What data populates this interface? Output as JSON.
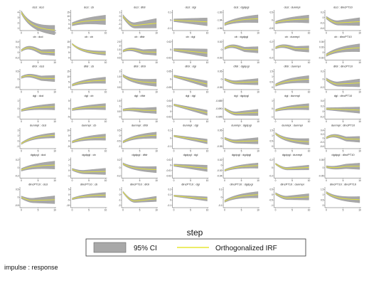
{
  "chart_data": {
    "type": "line",
    "x_label": "step",
    "footnote": "impulse : response",
    "legend": {
      "band_label": "95% CI",
      "line_label": "Orthogonalized IRF",
      "band_color": "#a8a8a8",
      "line_color": "#e6e633"
    },
    "x_ticks": [
      0,
      5,
      10
    ],
    "x_range": [
      0,
      10
    ],
    "variables": [
      "dcd",
      "cb",
      "dfdr",
      "dgl",
      "dgdpgl",
      "dunmpl",
      "dlncPT10"
    ],
    "panels": [
      [
        {
          "title": "dcd : dcd",
          "yticks": [
            "4",
            "3",
            "2",
            "1"
          ],
          "shape": "decay",
          "a": 4,
          "b": 0.5,
          "w": 0.9
        },
        {
          "title": "dcd : cb",
          "yticks": [
            "15",
            "10",
            "5",
            "0",
            "-5"
          ],
          "shape": "rise",
          "a": 0,
          "b": 6,
          "w": 6
        },
        {
          "title": "dcd : dfdr",
          "yticks": [
            "1",
            "0",
            "-1",
            "-2",
            "-3"
          ],
          "shape": "dipup",
          "a": 0,
          "b": -2.3,
          "w": 1.2
        },
        {
          "title": "dcd : dgl",
          "yticks": [
            "0.1",
            "0",
            "-0.1"
          ],
          "shape": "flatdown",
          "a": 0.0,
          "b": -0.02,
          "w": 0.05
        },
        {
          "title": "dcd : dgdpgl",
          "yticks": [
            "-1.92",
            "-1.94",
            "-1.96"
          ],
          "shape": "rise",
          "a": -1.95,
          "b": -1.935,
          "w": 0.01
        },
        {
          "title": "dcd : dunmpl",
          "yticks": [
            "0.5",
            "0",
            "-0.5"
          ],
          "shape": "rise",
          "a": -0.15,
          "b": 0.1,
          "w": 0.25
        },
        {
          "title": "dcd : dlncPT10",
          "yticks": [
            "0.2",
            "0",
            "-0.2",
            "-0.4"
          ],
          "shape": "dipup",
          "a": 0,
          "b": -0.2,
          "w": 0.15
        }
      ],
      [
        {
          "title": "cb : dcd",
          "yticks": [
            "0.4",
            "0.2",
            "0",
            "-0.2"
          ],
          "shape": "humpdown",
          "a": 0.2,
          "b": 0.0,
          "w": 0.12
        },
        {
          "title": "cb : cb",
          "yticks": [
            "15",
            "10",
            "5",
            "0"
          ],
          "shape": "decay",
          "a": 13,
          "b": 4,
          "w": 2
        },
        {
          "title": "cb : dfdr",
          "yticks": [
            "2.5",
            "2",
            "1.5",
            "1",
            "0.5"
          ],
          "shape": "humpdown",
          "a": 1.6,
          "b": 1.2,
          "w": 0.4
        },
        {
          "title": "cb : dgl",
          "yticks": [
            "0.02",
            "0",
            "-0.02"
          ],
          "shape": "flatdown",
          "a": 0.0,
          "b": -0.008,
          "w": 0.01
        },
        {
          "title": "cb : dgdpgl",
          "yticks": [
            "0.02",
            "0",
            "-0.02"
          ],
          "shape": "humpdown",
          "a": 0.01,
          "b": 0.0,
          "w": 0.008
        },
        {
          "title": "cb : dunmpl",
          "yticks": [
            "0.2",
            "0",
            "-0.2"
          ],
          "shape": "humpdown",
          "a": 0.1,
          "b": 0.02,
          "w": 0.08
        },
        {
          "title": "cb : dlncPT10",
          "yticks": [
            "0.04",
            "0.02",
            "0",
            "-0.02"
          ],
          "shape": "rise",
          "a": -0.01,
          "b": 0.02,
          "w": 0.015
        }
      ],
      [
        {
          "title": "dfdr : dcd",
          "yticks": [
            "0.5",
            "0",
            "-0.5"
          ],
          "shape": "humpdown",
          "a": 0.25,
          "b": 0.05,
          "w": 0.2
        },
        {
          "title": "dfdr : cb",
          "yticks": [
            "15",
            "10",
            "5",
            "0"
          ],
          "shape": "rise",
          "a": 2,
          "b": 7,
          "w": 3
        },
        {
          "title": "dfdr : dfdr",
          "yticks": [
            "2",
            "1.5",
            "1",
            "0.5"
          ],
          "shape": "decay",
          "a": 1.6,
          "b": 0.9,
          "w": 0.35
        },
        {
          "title": "dfdr : dgl",
          "yticks": [
            "0.05",
            "0",
            "-0.05"
          ],
          "shape": "flatdown",
          "a": 0.02,
          "b": -0.03,
          "w": 0.02
        },
        {
          "title": "dfdr : dgdpgl",
          "yticks": [
            "0.05",
            "0",
            "-0.05"
          ],
          "shape": "dipup",
          "a": 0.0,
          "b": -0.02,
          "w": 0.02
        },
        {
          "title": "dfdr : dunmpl",
          "yticks": [
            "1.5",
            "1",
            "0.5",
            "0"
          ],
          "shape": "rise",
          "a": 0.2,
          "b": 0.8,
          "w": 0.35
        },
        {
          "title": "dfdr : dlncPT10",
          "yticks": [
            "0.2",
            "0",
            "-0.2"
          ],
          "shape": "dipup",
          "a": 0.0,
          "b": -0.12,
          "w": 0.1
        }
      ],
      [
        {
          "title": "dgl : dcd",
          "yticks": [
            "1",
            "0",
            "-1"
          ],
          "shape": "rise",
          "a": -0.2,
          "b": 0.3,
          "w": 0.4
        },
        {
          "title": "dgl : cb",
          "yticks": [
            "5",
            "0",
            "-5"
          ],
          "shape": "rise",
          "a": -0.5,
          "b": 1.5,
          "w": 2
        },
        {
          "title": "dgl : dfdr",
          "yticks": [
            "1.5",
            "1",
            "0.5",
            "0"
          ],
          "shape": "humpdown",
          "a": 0.7,
          "b": 0.6,
          "w": 0.3
        },
        {
          "title": "dgl : dgl",
          "yticks": [
            "0.04",
            "0.02",
            "0",
            "-0.02"
          ],
          "shape": "flatdown",
          "a": 0.025,
          "b": -0.005,
          "w": 0.01
        },
        {
          "title": "dgl : dgdpgl",
          "yticks": [
            "-0.685",
            "-0.690",
            "-0.695"
          ],
          "shape": "dipup",
          "a": -0.69,
          "b": -0.693,
          "w": 0.002
        },
        {
          "title": "dgl : dunmpl",
          "yticks": [
            "1",
            "0",
            "-1"
          ],
          "shape": "rise",
          "a": -0.2,
          "b": 0.3,
          "w": 0.4
        },
        {
          "title": "dgl : dlncPT10",
          "yticks": [
            "0.4",
            "0.2",
            "0",
            "-0.2"
          ],
          "shape": "flatdown",
          "a": 0.1,
          "b": 0.05,
          "w": 0.12
        }
      ],
      [
        {
          "title": "dunmpl : dcd",
          "yticks": [
            "2",
            "1",
            "0",
            "-1"
          ],
          "shape": "rise",
          "a": -0.5,
          "b": 1.2,
          "w": 0.5
        },
        {
          "title": "dunmpl : cb",
          "yticks": [
            "10",
            "5",
            "0",
            "-5"
          ],
          "shape": "rise",
          "a": -1,
          "b": 4,
          "w": 3
        },
        {
          "title": "dunmpl : dfdr",
          "yticks": [
            "0.5",
            "0",
            "-0.5",
            "-1"
          ],
          "shape": "rise",
          "a": -0.6,
          "b": 0.1,
          "w": 0.3
        },
        {
          "title": "dunmpl : dgl",
          "yticks": [
            "0.1",
            "0",
            "-0.1"
          ],
          "shape": "flatdown",
          "a": 0.03,
          "b": -0.04,
          "w": 0.03
        },
        {
          "title": "dunmpl : dgdpgl",
          "yticks": [
            "0.05",
            "0",
            "-0.05"
          ],
          "shape": "dipup",
          "a": 0.0,
          "b": -0.02,
          "w": 0.02
        },
        {
          "title": "dunmpl : dunmpl",
          "yticks": [
            "1.5",
            "1",
            "0.5",
            "0"
          ],
          "shape": "decay",
          "a": 1.2,
          "b": 0.4,
          "w": 0.3
        },
        {
          "title": "dunmpl : dlncPT10",
          "yticks": [
            "0.4",
            "0.2",
            "0",
            "-0.2",
            "-0.4"
          ],
          "shape": "humpdown",
          "a": 0.15,
          "b": -0.05,
          "w": 0.15
        }
      ],
      [
        {
          "title": "dgdpgl : dcd",
          "yticks": [
            "0.2",
            "0",
            "-0.2"
          ],
          "shape": "rise",
          "a": -0.05,
          "b": 0.08,
          "w": 0.1
        },
        {
          "title": "dgdpgl : cb",
          "yticks": [
            "2",
            "1",
            "0",
            "-1"
          ],
          "shape": "dipup",
          "a": 0.2,
          "b": -0.3,
          "w": 0.6
        },
        {
          "title": "dgdpgl : dfdr",
          "yticks": [
            "0.2",
            "0",
            "-0.2"
          ],
          "shape": "decay",
          "a": 0.1,
          "b": -0.05,
          "w": 0.08
        },
        {
          "title": "dgdpgl : dgl",
          "yticks": [
            "0.01",
            "0",
            "-0.01",
            "-0.02"
          ],
          "shape": "flatdown",
          "a": 0.0,
          "b": -0.006,
          "w": 0.006
        },
        {
          "title": "dgdpgl : dgdpgl",
          "yticks": [
            "0.02",
            "0",
            "-0.02",
            "-0.04"
          ],
          "shape": "rise",
          "a": -0.02,
          "b": 0.0,
          "w": 0.01
        },
        {
          "title": "dgdpgl : dunmpl",
          "yticks": [
            "0.2",
            "0",
            "-0.2"
          ],
          "shape": "dipup",
          "a": 0.1,
          "b": -0.02,
          "w": 0.06
        },
        {
          "title": "dgdpgl : dlncPT10",
          "yticks": [
            "0.05",
            "0",
            "-0.05"
          ],
          "shape": "humpdown",
          "a": 0.0,
          "b": 0.01,
          "w": 0.02
        }
      ],
      [
        {
          "title": "dlncPT10 : dcd",
          "yticks": [
            "0.5",
            "0",
            "-0.5"
          ],
          "shape": "dipup",
          "a": 0.0,
          "b": -0.2,
          "w": 0.25
        },
        {
          "title": "dlncPT10 : cb",
          "yticks": [
            "5",
            "0",
            "-5",
            "-10"
          ],
          "shape": "rise",
          "a": -4,
          "b": 0,
          "w": 2.5
        },
        {
          "title": "dlncPT10 : dfdr",
          "yticks": [
            "1",
            "0",
            "-1",
            "-2"
          ],
          "shape": "dipup",
          "a": 0.5,
          "b": -1.2,
          "w": 0.5
        },
        {
          "title": "dlncPT10 : dgl",
          "yticks": [
            "0.2",
            "0.1",
            "0",
            "-0.1"
          ],
          "shape": "flatdown",
          "a": 0.08,
          "b": 0.02,
          "w": 0.04
        },
        {
          "title": "dlncPT10 : dgdpgl",
          "yticks": [
            "0.1",
            "0",
            "-0.1"
          ],
          "shape": "rise",
          "a": -0.05,
          "b": 0.04,
          "w": 0.04
        },
        {
          "title": "dlncPT10 : dunmpl",
          "yticks": [
            "0.5",
            "0",
            "-0.5",
            "-1"
          ],
          "shape": "dipup",
          "a": 0.1,
          "b": -0.3,
          "w": 0.3
        },
        {
          "title": "dlncPT10 : dlncPT10",
          "yticks": [
            "1.5",
            "1",
            "0.5",
            "0"
          ],
          "shape": "decay",
          "a": 1.2,
          "b": 0.5,
          "w": 0.3
        }
      ]
    ]
  }
}
